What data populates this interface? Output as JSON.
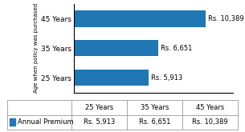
{
  "chart_data": {
    "type": "bar",
    "orientation": "horizontal",
    "categories": [
      "45 Years",
      "35 Years",
      "25 Years"
    ],
    "values": [
      10389,
      6651,
      5913
    ],
    "value_labels": [
      "Rs. 10,389",
      "Rs. 6,651",
      "Rs. 5,913"
    ],
    "data_labels": true,
    "ylabel": "Age when policy was purchased",
    "xlim": [
      0,
      12500
    ],
    "xticks": [],
    "tick_labels": "y",
    "grid": false,
    "table": {
      "columns": [
        "25 Years",
        "35 Years",
        "45 Years"
      ],
      "rows": [
        {
          "name": "Annual Premium",
          "values": [
            5913,
            6651,
            10389
          ],
          "value_labels": [
            "Rs. 5,913",
            "Rs. 6,651",
            "Rs. 10,389"
          ]
        }
      ]
    }
  }
}
